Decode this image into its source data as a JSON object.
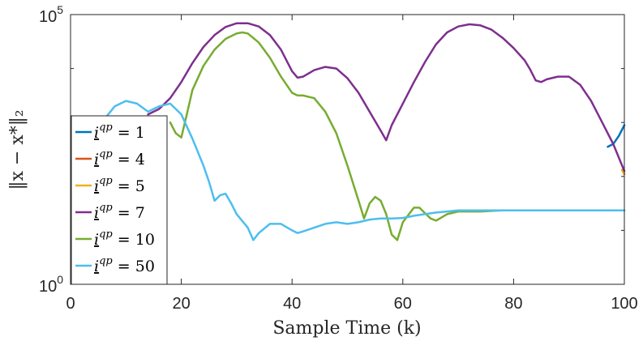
{
  "chart_data": {
    "type": "line",
    "title": "",
    "xlabel": "Sample Time (k)",
    "ylabel": "‖x − x*‖₂",
    "y_scale": "log",
    "xlim": [
      0,
      100
    ],
    "ylim_log10": [
      0,
      5
    ],
    "x_ticks": [
      0,
      20,
      40,
      60,
      80,
      100
    ],
    "x_tick_labels": [
      "0",
      "20",
      "40",
      "60",
      "80",
      "100"
    ],
    "y_ticks_log10": [
      0,
      5
    ],
    "y_tick_labels": [
      {
        "base": "10",
        "exp": "0"
      },
      {
        "base": "10",
        "exp": "5"
      }
    ],
    "y_minor_ticks_log10": [
      1,
      2,
      3,
      4
    ],
    "grid": false,
    "legend_position": "left",
    "series": [
      {
        "name": "i^qp = 1",
        "legend_base": "i",
        "legend_sup": "qp",
        "legend_rhs": "= 1",
        "color": "#0072BD",
        "x": [
          97,
          98,
          99,
          100
        ],
        "log10_y": [
          2.55,
          2.6,
          2.75,
          2.95
        ]
      },
      {
        "name": "i^qp = 4",
        "legend_base": "i",
        "legend_sup": "qp",
        "legend_rhs": "= 4",
        "color": "#D95319",
        "x": [
          99.6,
          100
        ],
        "log10_y": [
          2.12,
          2.05
        ]
      },
      {
        "name": "i^qp = 5",
        "legend_base": "i",
        "legend_sup": "qp",
        "legend_rhs": "= 5",
        "color": "#EDB120",
        "x": [
          99.6,
          100
        ],
        "log10_y": [
          2.11,
          2.04
        ]
      },
      {
        "name": "i^qp = 7",
        "legend_base": "i",
        "legend_sup": "qp",
        "legend_rhs": "= 7",
        "color": "#7E2F8E",
        "x": [
          14,
          16,
          18,
          20,
          22,
          24,
          26,
          28,
          30,
          32,
          34,
          36,
          38,
          40,
          41,
          42,
          44,
          46,
          48,
          50,
          52,
          54,
          56,
          57,
          58,
          60,
          62,
          64,
          66,
          68,
          70,
          72,
          74,
          76,
          78,
          80,
          82,
          83,
          84,
          85,
          86,
          88,
          90,
          92,
          94,
          96,
          98,
          100
        ],
        "log10_y": [
          3.15,
          3.25,
          3.45,
          3.75,
          4.1,
          4.4,
          4.62,
          4.77,
          4.84,
          4.84,
          4.78,
          4.62,
          4.35,
          3.95,
          3.83,
          3.85,
          3.97,
          4.03,
          4.0,
          3.82,
          3.55,
          3.2,
          2.85,
          2.67,
          2.95,
          3.35,
          3.75,
          4.12,
          4.45,
          4.67,
          4.78,
          4.82,
          4.8,
          4.72,
          4.57,
          4.38,
          4.15,
          3.98,
          3.78,
          3.75,
          3.8,
          3.85,
          3.85,
          3.7,
          3.4,
          3.0,
          2.6,
          2.1
        ]
      },
      {
        "name": "i^qp = 10",
        "legend_base": "i",
        "legend_sup": "qp",
        "legend_rhs": "= 10",
        "color": "#77AC30",
        "x": [
          18,
          19,
          20,
          21,
          22,
          24,
          26,
          28,
          30,
          31,
          32,
          34,
          36,
          38,
          40,
          41,
          42,
          44,
          46,
          48,
          50,
          52,
          53,
          54,
          55,
          56,
          57,
          58,
          59,
          60,
          62,
          63,
          64,
          65,
          66,
          68,
          70,
          72,
          74,
          76,
          78,
          80,
          82,
          84,
          86,
          88,
          90,
          92,
          94,
          96,
          98,
          100
        ],
        "log10_y": [
          3.0,
          2.8,
          2.72,
          3.15,
          3.6,
          4.05,
          4.35,
          4.55,
          4.65,
          4.67,
          4.65,
          4.48,
          4.2,
          3.85,
          3.55,
          3.5,
          3.5,
          3.45,
          3.2,
          2.8,
          2.2,
          1.55,
          1.22,
          1.5,
          1.62,
          1.55,
          1.3,
          0.92,
          0.82,
          1.15,
          1.42,
          1.42,
          1.32,
          1.22,
          1.18,
          1.3,
          1.35,
          1.35,
          1.35,
          1.36,
          1.37,
          1.37,
          1.37,
          1.37,
          1.37,
          1.37,
          1.37,
          1.37,
          1.37,
          1.37,
          1.37,
          1.37
        ]
      },
      {
        "name": "i^qp = 50",
        "legend_base": "i",
        "legend_sup": "qp",
        "legend_rhs": "= 50",
        "color": "#4DBEEE",
        "x": [
          6,
          8,
          10,
          12,
          14,
          16,
          18,
          20,
          22,
          24,
          25,
          26,
          27,
          28,
          29,
          30,
          32,
          33,
          34,
          36,
          38,
          40,
          41,
          42,
          44,
          46,
          48,
          50,
          52,
          54,
          56,
          58,
          60,
          62,
          64,
          66,
          68,
          70,
          72,
          74,
          76,
          78,
          80,
          85,
          90,
          95,
          100
        ],
        "log10_y": [
          3.05,
          3.3,
          3.4,
          3.35,
          3.2,
          3.3,
          3.35,
          3.15,
          2.7,
          2.2,
          1.9,
          1.55,
          1.65,
          1.68,
          1.5,
          1.3,
          1.05,
          0.82,
          0.95,
          1.12,
          1.12,
          1.0,
          0.95,
          0.98,
          1.05,
          1.12,
          1.15,
          1.12,
          1.15,
          1.2,
          1.22,
          1.22,
          1.23,
          1.27,
          1.3,
          1.33,
          1.35,
          1.37,
          1.37,
          1.37,
          1.37,
          1.37,
          1.37,
          1.37,
          1.37,
          1.37,
          1.37
        ]
      }
    ]
  }
}
